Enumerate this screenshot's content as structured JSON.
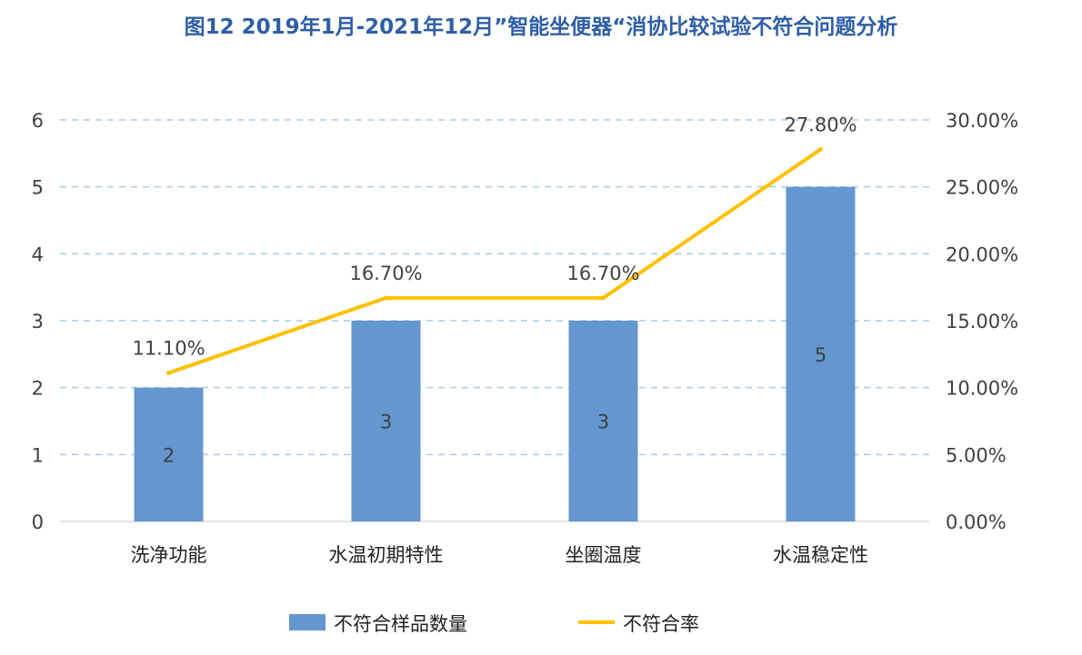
{
  "chart_data": {
    "type": "bar",
    "title": "图12  2019年1月-2021年12月”智能坐便器“消协比较试验不符合问题分析",
    "categories": [
      "洗净功能",
      "水温初期特性",
      "坐圈温度",
      "水温稳定性"
    ],
    "series": [
      {
        "name": "不符合样品数量",
        "type": "bar",
        "axis": "left",
        "values": [
          2,
          3,
          3,
          5
        ],
        "labels": [
          "2",
          "3",
          "3",
          "5"
        ],
        "color": "#6496CF"
      },
      {
        "name": "不符合率",
        "type": "line",
        "axis": "right",
        "values": [
          0.111,
          0.167,
          0.167,
          0.278
        ],
        "labels": [
          "11.10%",
          "16.70%",
          "16.70%",
          "27.80%"
        ],
        "color": "#FFC000"
      }
    ],
    "y_left": {
      "min": 0,
      "max": 6,
      "ticks": [
        "0",
        "1",
        "2",
        "3",
        "4",
        "5",
        "6"
      ]
    },
    "y_right": {
      "min": 0,
      "max": 0.3,
      "ticks": [
        "0.00%",
        "5.00%",
        "10.00%",
        "15.00%",
        "20.00%",
        "25.00%",
        "30.00%"
      ]
    },
    "grid": true,
    "legend_position": "bottom"
  }
}
